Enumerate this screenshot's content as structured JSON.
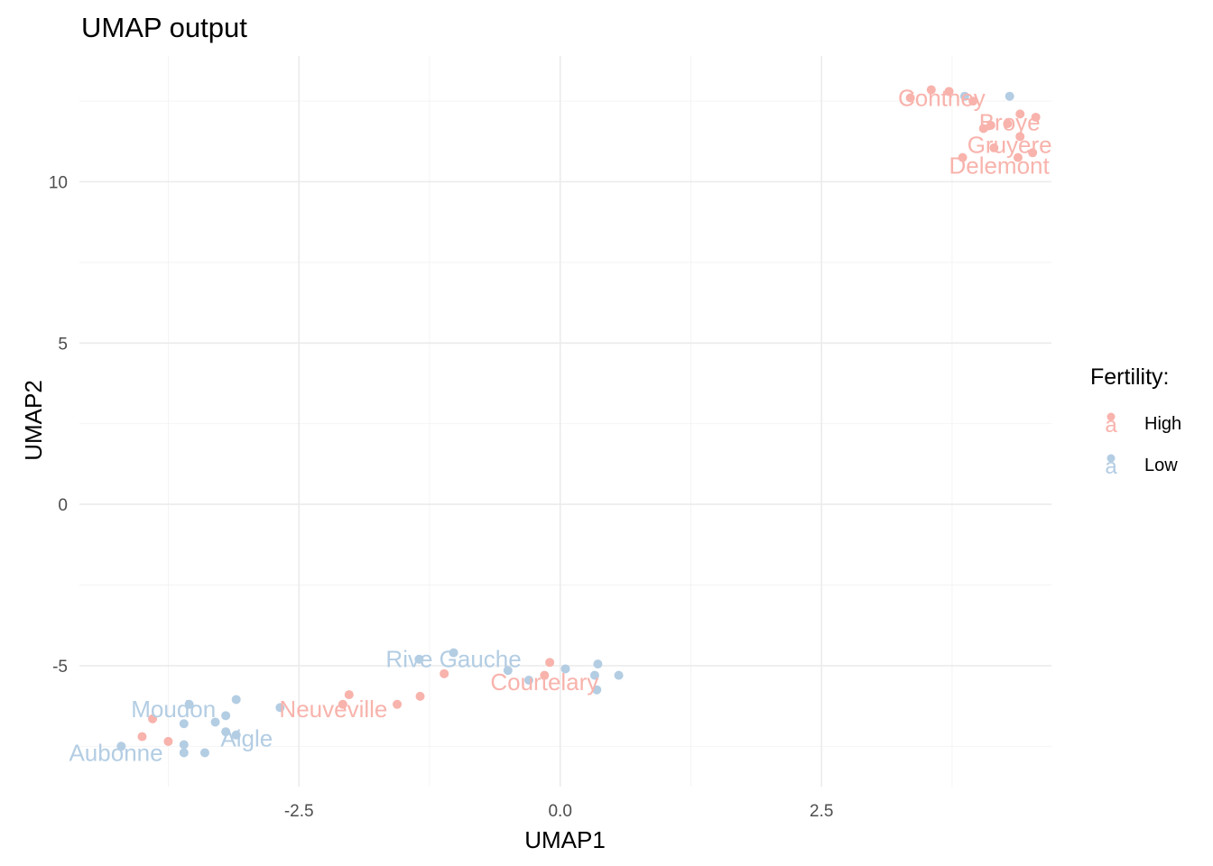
{
  "chart_data": {
    "type": "scatter",
    "title": "UMAP output",
    "xlabel": "UMAP1",
    "ylabel": "UMAP2",
    "xlim": [
      -4.6,
      4.7
    ],
    "ylim": [
      -8.75,
      13.9
    ],
    "x_ticks": [
      -2.5,
      0.0,
      2.5
    ],
    "x_tick_labels": [
      "-2.5",
      "0.0",
      "2.5"
    ],
    "y_ticks": [
      -5,
      0,
      5,
      10
    ],
    "y_tick_labels": [
      "-5",
      "0",
      "5",
      "10"
    ],
    "grid": true,
    "legend": {
      "title": "Fertility:",
      "placement": "right",
      "glyph": "a",
      "entries": [
        {
          "label": "High",
          "color": "#F8B3AC"
        },
        {
          "label": "Low",
          "color": "#B3CDE3"
        }
      ]
    },
    "series": [
      {
        "name": "High",
        "color": "#F8B3AC",
        "points": [
          [
            3.35,
            12.6
          ],
          [
            3.55,
            12.85
          ],
          [
            3.72,
            12.8
          ],
          [
            3.95,
            12.5
          ],
          [
            4.05,
            11.65
          ],
          [
            4.12,
            11.75
          ],
          [
            4.28,
            11.8
          ],
          [
            4.4,
            12.1
          ],
          [
            4.55,
            12.0
          ],
          [
            4.15,
            11.05
          ],
          [
            3.85,
            10.75
          ],
          [
            4.38,
            10.75
          ],
          [
            4.52,
            10.9
          ],
          [
            4.4,
            11.4
          ],
          [
            -4.0,
            -7.2
          ],
          [
            -3.9,
            -6.65
          ],
          [
            -3.75,
            -7.35
          ],
          [
            -2.08,
            -6.2
          ],
          [
            -2.02,
            -5.9
          ],
          [
            -1.56,
            -6.2
          ],
          [
            -1.34,
            -5.95
          ],
          [
            -1.11,
            -5.25
          ],
          [
            -0.15,
            -5.3
          ],
          [
            -0.1,
            -4.9
          ]
        ]
      },
      {
        "name": "Low",
        "color": "#B3CDE3",
        "points": [
          [
            3.87,
            12.65
          ],
          [
            4.3,
            12.65
          ],
          [
            -4.2,
            -7.5
          ],
          [
            -3.6,
            -6.8
          ],
          [
            -3.6,
            -7.45
          ],
          [
            -3.6,
            -7.7
          ],
          [
            -3.55,
            -6.2
          ],
          [
            -3.4,
            -7.7
          ],
          [
            -3.3,
            -6.75
          ],
          [
            -3.2,
            -6.55
          ],
          [
            -3.2,
            -7.05
          ],
          [
            -3.1,
            -7.15
          ],
          [
            -3.1,
            -6.05
          ],
          [
            -2.68,
            -6.3
          ],
          [
            -1.35,
            -4.8
          ],
          [
            -1.02,
            -4.6
          ],
          [
            -0.5,
            -5.15
          ],
          [
            -0.3,
            -5.45
          ],
          [
            0.05,
            -5.1
          ],
          [
            0.33,
            -5.3
          ],
          [
            0.35,
            -5.75
          ],
          [
            0.36,
            -4.95
          ],
          [
            0.56,
            -5.3
          ]
        ]
      }
    ],
    "point_labels": [
      {
        "text": "Conthey",
        "x": 3.65,
        "y": 12.6,
        "series": "High"
      },
      {
        "text": "Broye",
        "x": 4.3,
        "y": 11.85,
        "series": "High"
      },
      {
        "text": "Gruyere",
        "x": 4.3,
        "y": 11.15,
        "series": "High"
      },
      {
        "text": "Delemont",
        "x": 4.2,
        "y": 10.5,
        "series": "High"
      },
      {
        "text": "Rive Gauche",
        "x": -1.02,
        "y": -4.8,
        "series": "Low"
      },
      {
        "text": "Courtelary",
        "x": -0.15,
        "y": -5.5,
        "series": "High"
      },
      {
        "text": "Moudon",
        "x": -3.7,
        "y": -6.35,
        "series": "Low"
      },
      {
        "text": "Neuveville",
        "x": -2.17,
        "y": -6.35,
        "series": "High"
      },
      {
        "text": "Aigle",
        "x": -3.0,
        "y": -7.25,
        "series": "Low"
      },
      {
        "text": "Aubonne",
        "x": -4.25,
        "y": -7.7,
        "series": "Low"
      }
    ]
  }
}
